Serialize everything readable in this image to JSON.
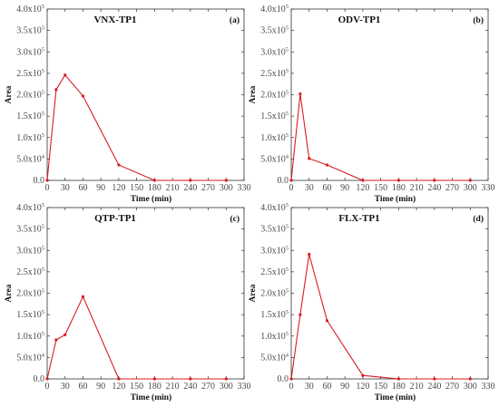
{
  "style": {
    "series_color": "#d81b22",
    "marker": "circle"
  },
  "chart_data": [
    {
      "type": "line",
      "title": "VNX-TP1",
      "panel_label": "(a)",
      "xlabel": "Time (min)",
      "ylabel": "Area",
      "xlim": [
        0,
        330
      ],
      "ylim": [
        0,
        400000
      ],
      "x_ticks": [
        0,
        30,
        60,
        90,
        120,
        150,
        180,
        210,
        240,
        270,
        300,
        330
      ],
      "y_ticks": [
        {
          "mant": "0.0",
          "exp": ""
        },
        {
          "mant": "5.0x10",
          "exp": "4"
        },
        {
          "mant": "1.0x10",
          "exp": "5"
        },
        {
          "mant": "1.5x10",
          "exp": "5"
        },
        {
          "mant": "2.0x10",
          "exp": "5"
        },
        {
          "mant": "2.5x10",
          "exp": "5"
        },
        {
          "mant": "3.0x10",
          "exp": "5"
        },
        {
          "mant": "3.5x10",
          "exp": "5"
        },
        {
          "mant": "4.0x10",
          "exp": "5"
        }
      ],
      "x": [
        0,
        15,
        30,
        60,
        120,
        180,
        240,
        300
      ],
      "y": [
        0,
        212000,
        246000,
        197000,
        36000,
        0,
        0,
        0
      ]
    },
    {
      "type": "line",
      "title": "ODV-TP1",
      "panel_label": "(b)",
      "xlabel": "Time (min)",
      "ylabel": "Area",
      "xlim": [
        0,
        330
      ],
      "ylim": [
        0,
        400000
      ],
      "x_ticks": [
        0,
        30,
        60,
        90,
        120,
        150,
        180,
        210,
        240,
        270,
        300,
        330
      ],
      "y_ticks": [
        {
          "mant": "0.0",
          "exp": ""
        },
        {
          "mant": "5.0x10",
          "exp": "4"
        },
        {
          "mant": "1.0x10",
          "exp": "5"
        },
        {
          "mant": "1.5x10",
          "exp": "5"
        },
        {
          "mant": "2.0x10",
          "exp": "5"
        },
        {
          "mant": "2.5x10",
          "exp": "5"
        },
        {
          "mant": "3.0x10",
          "exp": "5"
        },
        {
          "mant": "3.5x10",
          "exp": "5"
        },
        {
          "mant": "4.0x10",
          "exp": "5"
        }
      ],
      "x": [
        0,
        15,
        30,
        60,
        120,
        180,
        240,
        300
      ],
      "y": [
        0,
        202000,
        51000,
        36000,
        0,
        0,
        0,
        0
      ]
    },
    {
      "type": "line",
      "title": "QTP-TP1",
      "panel_label": "(c)",
      "xlabel": "Time (min)",
      "ylabel": "Area",
      "xlim": [
        0,
        330
      ],
      "ylim": [
        0,
        400000
      ],
      "x_ticks": [
        0,
        30,
        60,
        90,
        120,
        150,
        180,
        210,
        240,
        270,
        300,
        330
      ],
      "y_ticks": [
        {
          "mant": "0.0",
          "exp": ""
        },
        {
          "mant": "5.0x10",
          "exp": "4"
        },
        {
          "mant": "1.0x10",
          "exp": "5"
        },
        {
          "mant": "1.5x10",
          "exp": "5"
        },
        {
          "mant": "2.0x10",
          "exp": "5"
        },
        {
          "mant": "2.5x10",
          "exp": "5"
        },
        {
          "mant": "3.0x10",
          "exp": "5"
        },
        {
          "mant": "3.5x10",
          "exp": "5"
        },
        {
          "mant": "4.0x10",
          "exp": "5"
        }
      ],
      "x": [
        0,
        15,
        30,
        60,
        120,
        180,
        240,
        300
      ],
      "y": [
        0,
        91000,
        103000,
        192000,
        0,
        0,
        0,
        0
      ]
    },
    {
      "type": "line",
      "title": "FLX-TP1",
      "panel_label": "(d)",
      "xlabel": "Time (min)",
      "ylabel": "Area",
      "xlim": [
        0,
        330
      ],
      "ylim": [
        0,
        400000
      ],
      "x_ticks": [
        0,
        30,
        60,
        90,
        120,
        150,
        180,
        210,
        240,
        270,
        300,
        330
      ],
      "y_ticks": [
        {
          "mant": "0.0",
          "exp": ""
        },
        {
          "mant": "5.0x10",
          "exp": "4"
        },
        {
          "mant": "1.0x10",
          "exp": "5"
        },
        {
          "mant": "1.5x10",
          "exp": "5"
        },
        {
          "mant": "2.0x10",
          "exp": "5"
        },
        {
          "mant": "2.5x10",
          "exp": "5"
        },
        {
          "mant": "3.0x10",
          "exp": "5"
        },
        {
          "mant": "3.5x10",
          "exp": "5"
        },
        {
          "mant": "4.0x10",
          "exp": "5"
        }
      ],
      "x": [
        0,
        15,
        30,
        60,
        120,
        180,
        240,
        300
      ],
      "y": [
        0,
        150000,
        291000,
        136000,
        8000,
        0,
        0,
        0
      ]
    }
  ]
}
